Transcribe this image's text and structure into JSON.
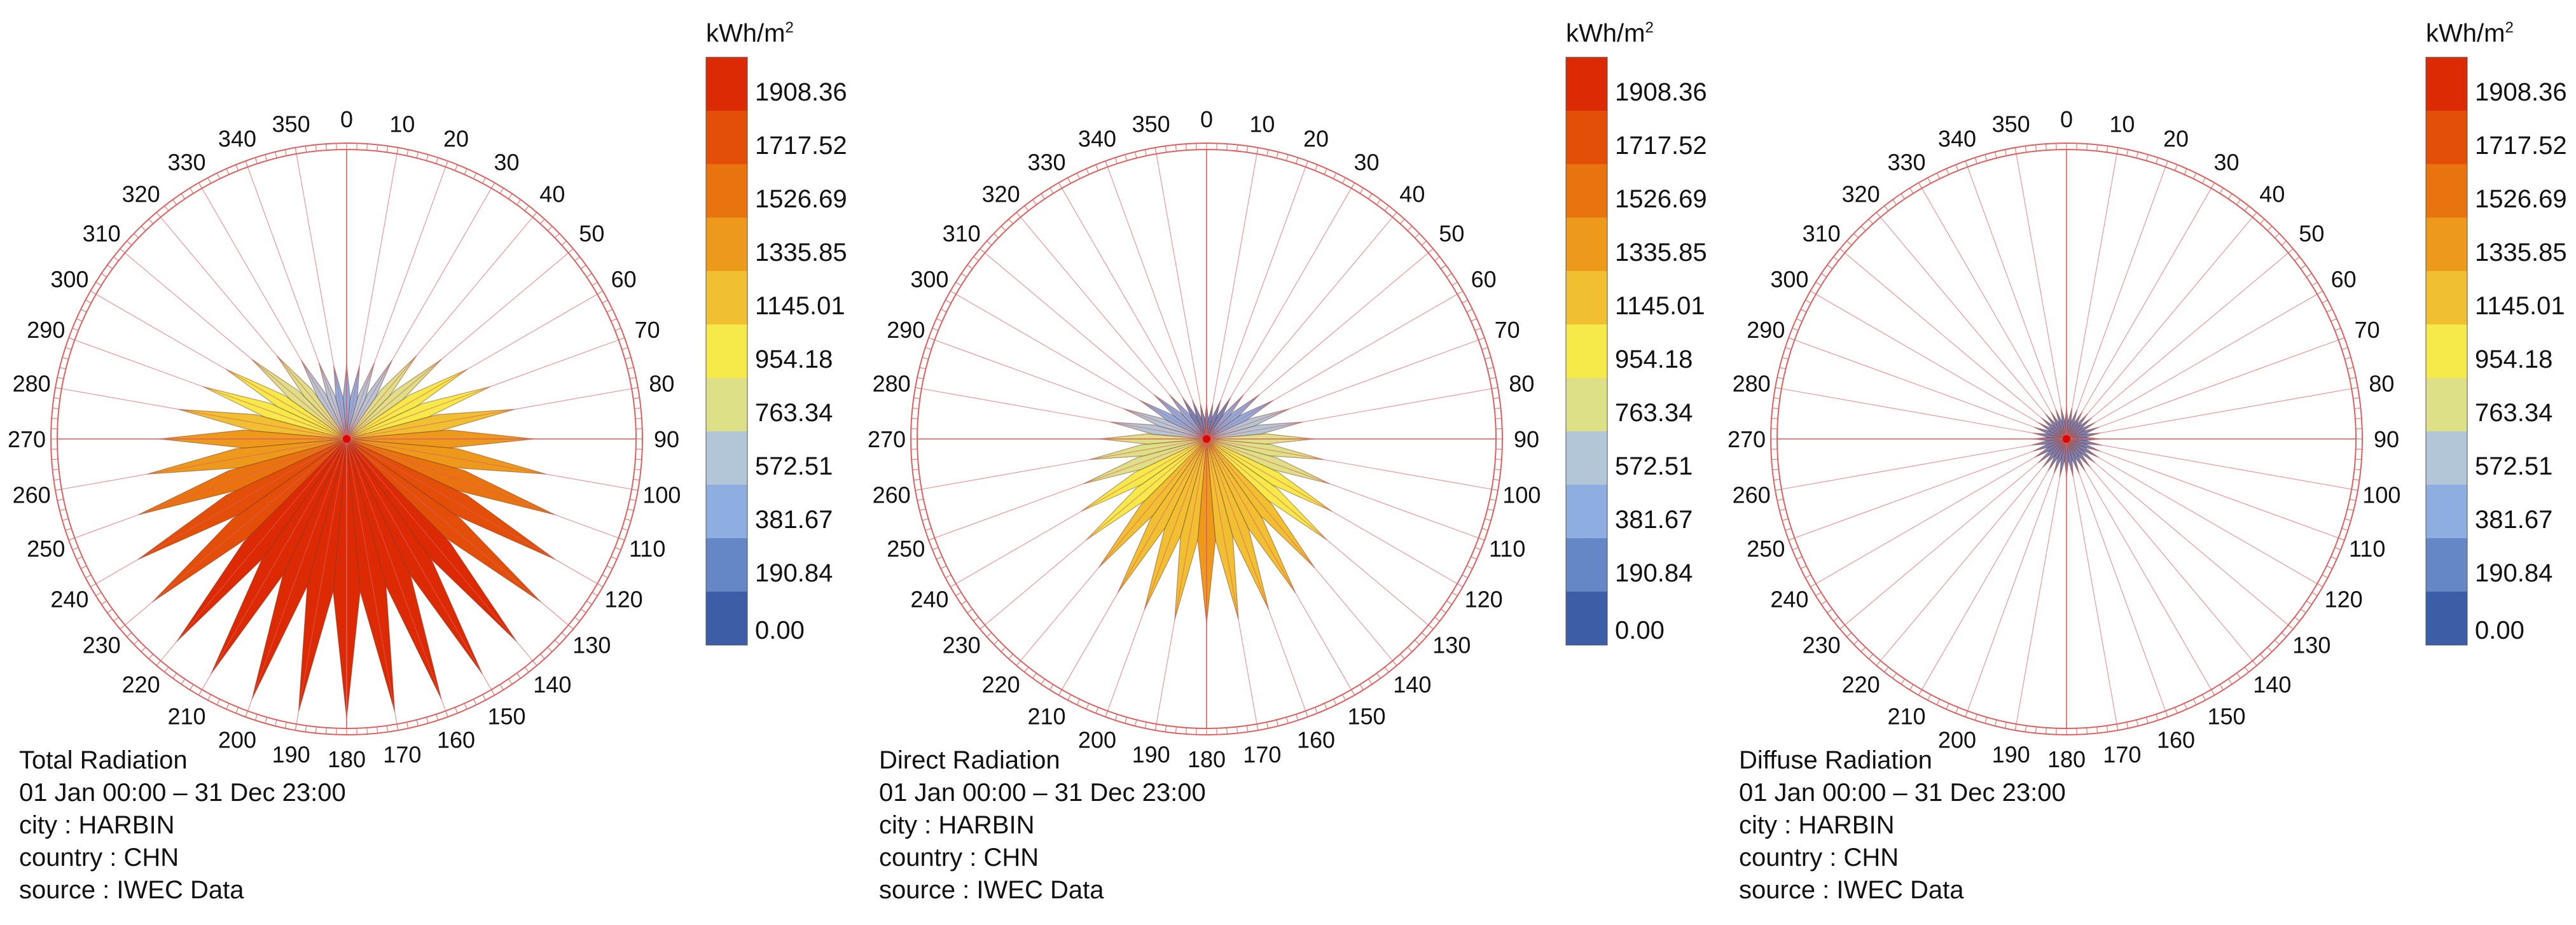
{
  "colors": {
    "bins": [
      "#3b5ea6",
      "#6687c6",
      "#8eaee2",
      "#b3c6d8",
      "#dde087",
      "#f6ea4b",
      "#f1bf32",
      "#ed9a1c",
      "#e8730f",
      "#e34e08",
      "#dc2a04"
    ],
    "grid": "#e06060",
    "outline": "#7a3a20",
    "center": "#e00000"
  },
  "legend": {
    "unit_base": "kWh/m",
    "unit_exp": "2",
    "labels": [
      "1908.36",
      "1717.52",
      "1526.69",
      "1335.85",
      "1145.01",
      "954.18",
      "763.34",
      "572.51",
      "381.67",
      "190.84",
      "0.00"
    ]
  },
  "chart_data": [
    {
      "type": "radial-bar",
      "title": "Total Radiation",
      "period": "01 Jan 00:00 – 31 Dec 23:00",
      "city": "city : HARBIN",
      "country": "country : CHN",
      "source": "source : IWEC Data",
      "angle_labels": [
        "0",
        "10",
        "20",
        "30",
        "40",
        "50",
        "60",
        "70",
        "80",
        "90",
        "100",
        "110",
        "120",
        "130",
        "140",
        "150",
        "160",
        "170",
        "180",
        "190",
        "200",
        "210",
        "220",
        "230",
        "240",
        "250",
        "260",
        "270",
        "280",
        "290",
        "300",
        "310",
        "320",
        "330",
        "340",
        "350"
      ],
      "rlim": [
        0,
        2100
      ],
      "directions": [
        0,
        10,
        20,
        30,
        40,
        50,
        60,
        70,
        80,
        90,
        100,
        110,
        120,
        130,
        140,
        150,
        160,
        170,
        180,
        190,
        200,
        210,
        220,
        230,
        240,
        250,
        260,
        270,
        280,
        290,
        300,
        310,
        320,
        330,
        340,
        350
      ],
      "values": [
        540,
        540,
        590,
        660,
        790,
        900,
        1010,
        1110,
        1240,
        1360,
        1470,
        1610,
        1750,
        1840,
        1920,
        1970,
        2010,
        2010,
        2030,
        2010,
        2010,
        1970,
        1920,
        1840,
        1750,
        1610,
        1470,
        1360,
        1240,
        1110,
        1010,
        900,
        790,
        660,
        590,
        540
      ]
    },
    {
      "type": "radial-bar",
      "title": "Direct Radiation",
      "period": "01 Jan 00:00 – 31 Dec 23:00",
      "city": "city : HARBIN",
      "country": "country : CHN",
      "source": "source : IWEC Data",
      "angle_labels": [
        "0",
        "10",
        "20",
        "30",
        "40",
        "50",
        "60",
        "70",
        "80",
        "90",
        "100",
        "110",
        "120",
        "130",
        "140",
        "150",
        "160",
        "170",
        "180",
        "190",
        "200",
        "210",
        "220",
        "230",
        "240",
        "250",
        "260",
        "270",
        "280",
        "290",
        "300",
        "310",
        "320",
        "330",
        "340",
        "350"
      ],
      "rlim": [
        0,
        2100
      ],
      "directions": [
        0,
        10,
        20,
        30,
        40,
        50,
        60,
        70,
        80,
        90,
        100,
        110,
        120,
        130,
        140,
        150,
        160,
        170,
        180,
        190,
        200,
        210,
        220,
        230,
        240,
        250,
        260,
        270,
        280,
        290,
        300,
        310,
        320,
        330,
        340,
        350
      ],
      "values": [
        260,
        260,
        300,
        350,
        420,
        500,
        560,
        640,
        710,
        780,
        860,
        950,
        1050,
        1140,
        1220,
        1290,
        1320,
        1330,
        1340,
        1330,
        1320,
        1290,
        1220,
        1140,
        1050,
        950,
        860,
        780,
        710,
        640,
        560,
        500,
        420,
        350,
        300,
        260
      ]
    },
    {
      "type": "radial-bar",
      "title": "Diffuse Radiation",
      "period": "01 Jan 00:00 – 31 Dec 23:00",
      "city": "city : HARBIN",
      "country": "country : CHN",
      "source": "source : IWEC Data",
      "angle_labels": [
        "0",
        "10",
        "20",
        "30",
        "40",
        "50",
        "60",
        "70",
        "80",
        "90",
        "100",
        "110",
        "120",
        "130",
        "140",
        "150",
        "160",
        "170",
        "180",
        "190",
        "200",
        "210",
        "220",
        "230",
        "240",
        "250",
        "260",
        "270",
        "280",
        "290",
        "300",
        "310",
        "320",
        "330",
        "340",
        "350"
      ],
      "rlim": [
        0,
        2100
      ],
      "directions": [
        0,
        10,
        20,
        30,
        40,
        50,
        60,
        70,
        80,
        90,
        100,
        110,
        120,
        130,
        140,
        150,
        160,
        170,
        180,
        190,
        200,
        210,
        220,
        230,
        240,
        250,
        260,
        270,
        280,
        290,
        300,
        310,
        320,
        330,
        340,
        350
      ],
      "values": [
        230,
        230,
        230,
        230,
        240,
        240,
        240,
        250,
        250,
        250,
        260,
        260,
        270,
        270,
        270,
        270,
        270,
        280,
        280,
        280,
        270,
        270,
        270,
        270,
        270,
        260,
        260,
        250,
        250,
        250,
        240,
        240,
        240,
        230,
        230,
        230
      ]
    }
  ]
}
